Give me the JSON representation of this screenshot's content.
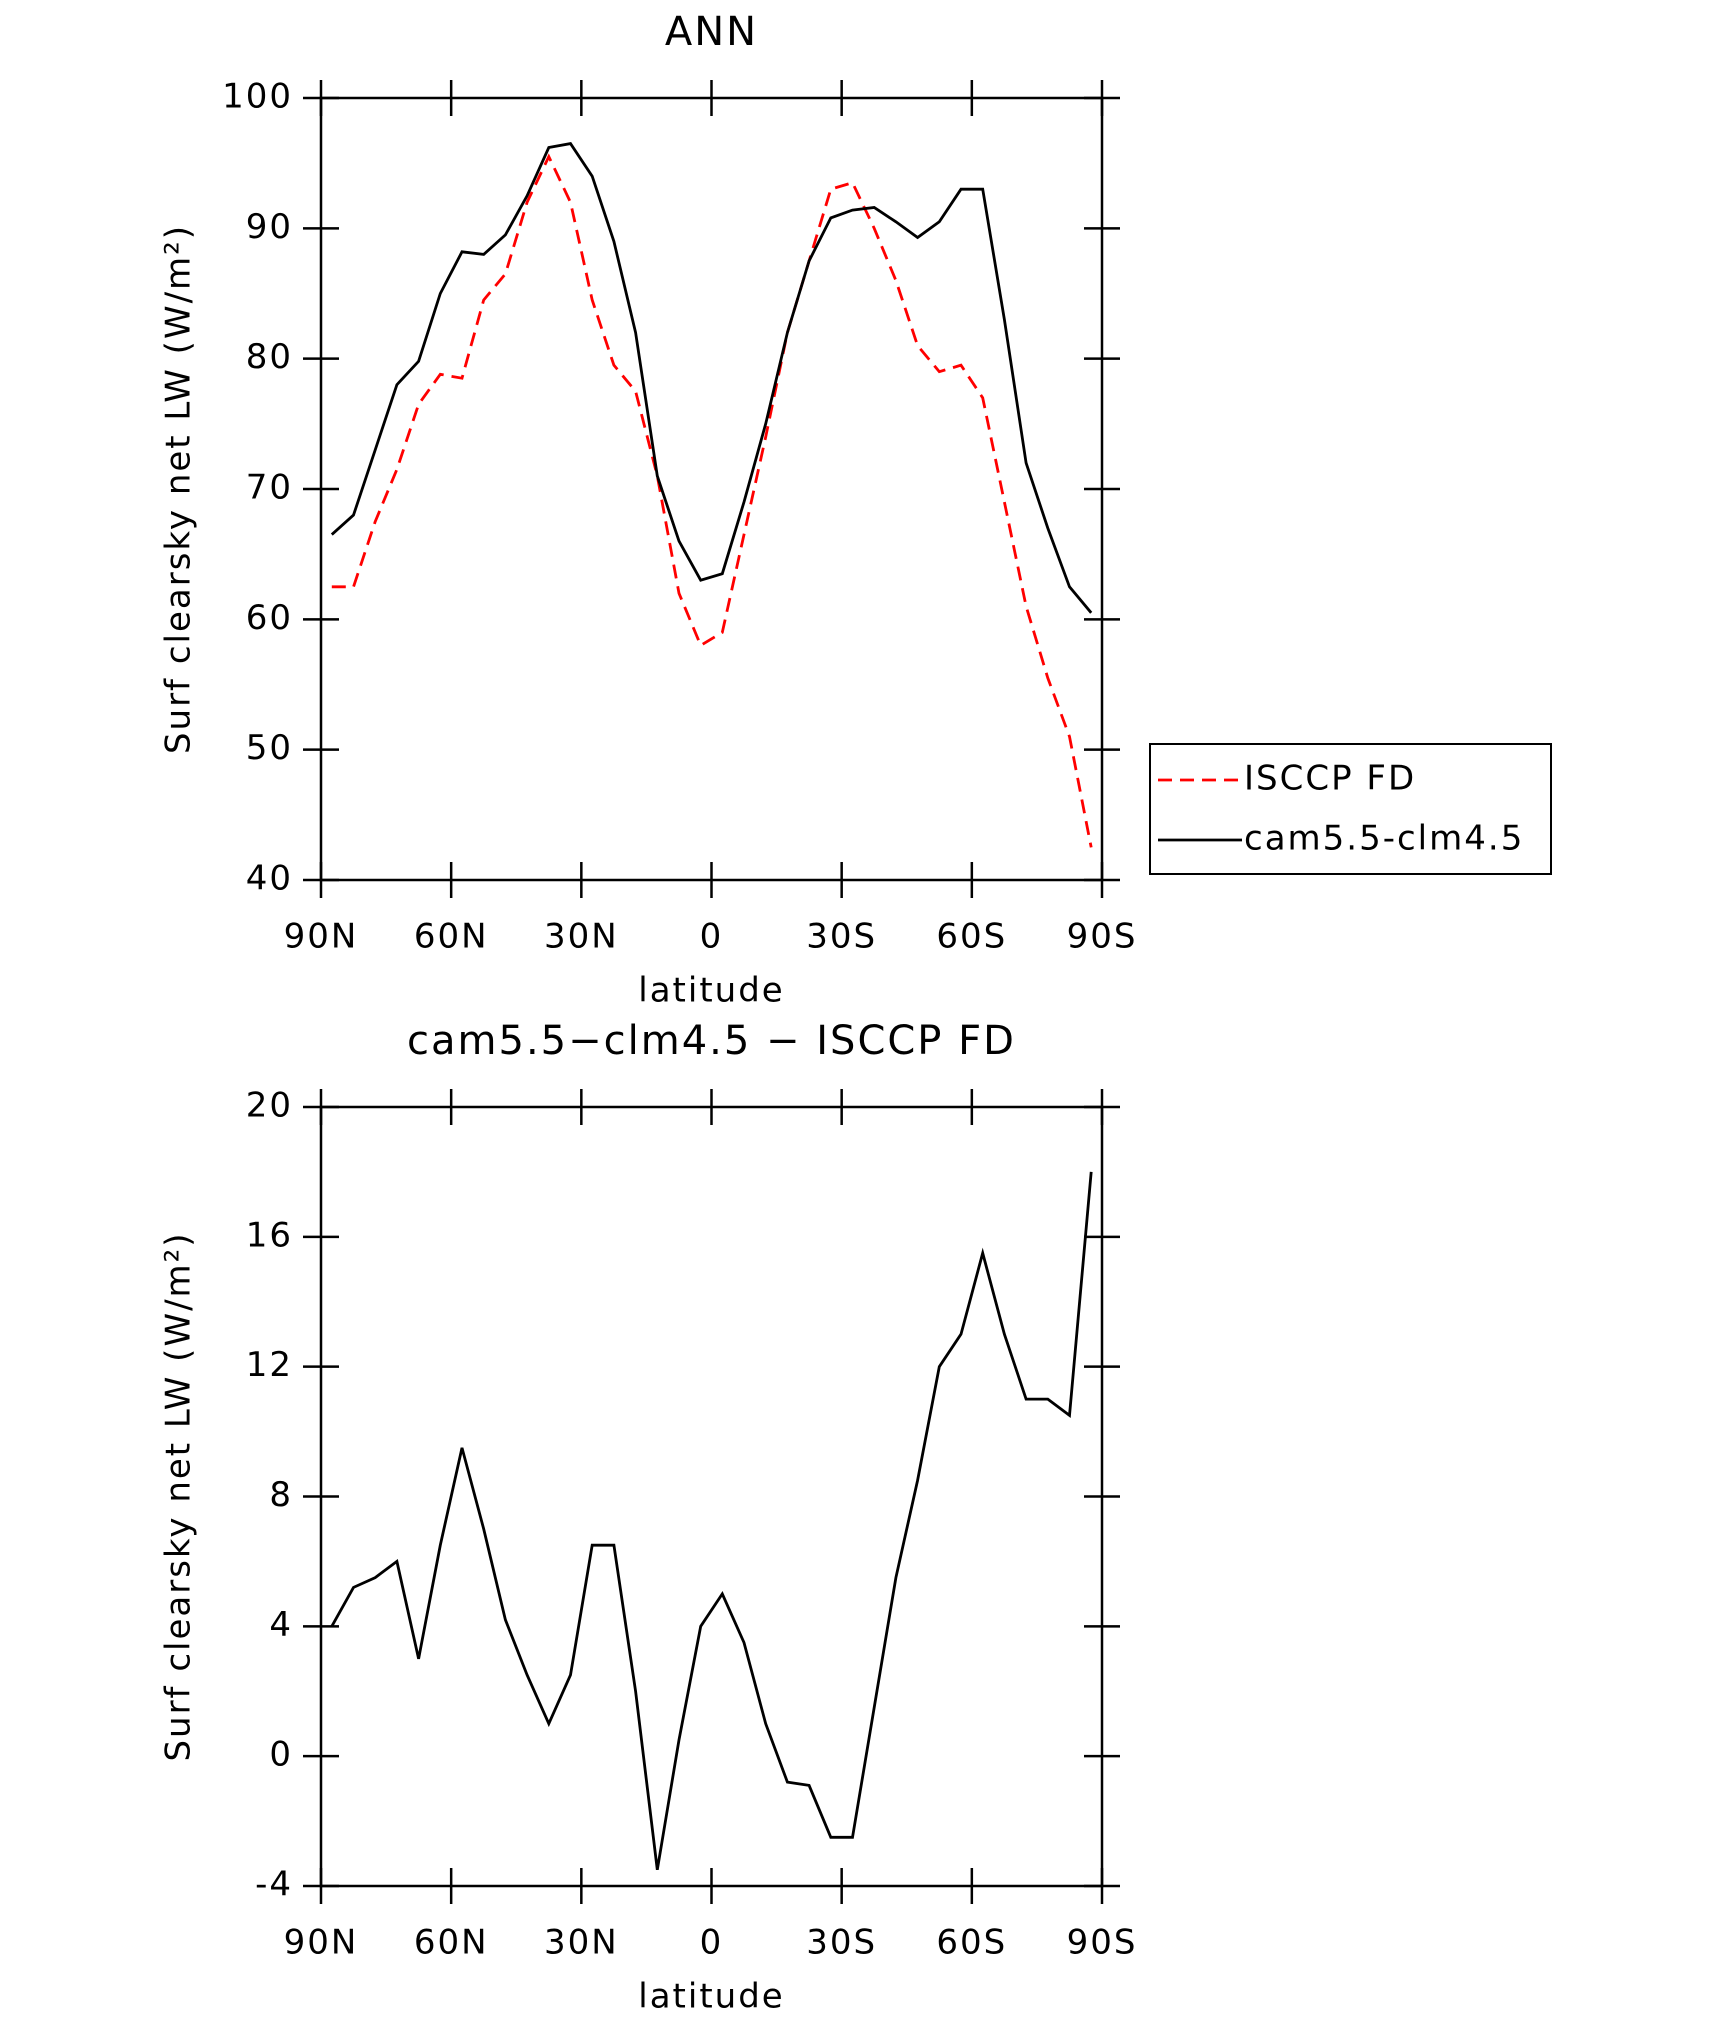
{
  "chart_data": [
    {
      "type": "line",
      "title": "ANN",
      "xlabel": "latitude",
      "ylabel": "Surf clearsky net LW (W/m²)",
      "x": [
        87.5,
        82.5,
        77.5,
        72.5,
        67.5,
        62.5,
        57.5,
        52.5,
        47.5,
        42.5,
        37.5,
        32.5,
        27.5,
        22.5,
        17.5,
        12.5,
        7.5,
        2.5,
        -2.5,
        -7.5,
        -12.5,
        -17.5,
        -22.5,
        -27.5,
        -32.5,
        -37.5,
        -42.5,
        -47.5,
        -52.5,
        -57.5,
        -62.5,
        -67.5,
        -72.5,
        -77.5,
        -82.5,
        -87.5
      ],
      "series": [
        {
          "name": "ISCCP FD",
          "color": "#ff0000",
          "linestyle": "dashed",
          "values": [
            62.5,
            62.5,
            67.5,
            71.5,
            76.5,
            78.8,
            78.5,
            84.5,
            86.5,
            92,
            95.5,
            92,
            84.5,
            79.5,
            77.5,
            71,
            62,
            58,
            59,
            66.5,
            74,
            82,
            87.5,
            93,
            93.5,
            90,
            86,
            81,
            79,
            79.5,
            77,
            69,
            61,
            55.5,
            51,
            42.5
          ]
        },
        {
          "name": "cam5.5-clm4.5",
          "color": "#000000",
          "linestyle": "solid",
          "values": [
            66.5,
            68,
            73,
            78,
            79.8,
            85,
            88.2,
            88,
            89.5,
            92.5,
            96.2,
            96.5,
            94,
            89,
            82,
            71,
            66,
            63,
            63.5,
            69,
            75,
            82,
            87.5,
            90.8,
            91.4,
            91.6,
            90.5,
            89.3,
            90.5,
            93,
            93,
            83,
            72,
            67,
            62.5,
            60.5
          ]
        }
      ],
      "xlim": [
        90,
        -90
      ],
      "xticks": [
        {
          "value": 90,
          "label": "90N"
        },
        {
          "value": 60,
          "label": "60N"
        },
        {
          "value": 30,
          "label": "30N"
        },
        0,
        {
          "value": -30,
          "label": "30S"
        },
        {
          "value": -60,
          "label": "60S"
        },
        {
          "value": -90,
          "label": "90S"
        }
      ],
      "ylim": [
        40,
        100
      ],
      "yticks": [
        40,
        50,
        60,
        70,
        80,
        90,
        100
      ],
      "legend": "right"
    },
    {
      "type": "line",
      "title": "cam5.5−clm4.5 − ISCCP FD",
      "xlabel": "latitude",
      "ylabel": "Surf clearsky net LW (W/m²)",
      "x": [
        87.5,
        82.5,
        77.5,
        72.5,
        67.5,
        62.5,
        57.5,
        52.5,
        47.5,
        42.5,
        37.5,
        32.5,
        27.5,
        22.5,
        17.5,
        12.5,
        7.5,
        2.5,
        -2.5,
        -7.5,
        -12.5,
        -17.5,
        -22.5,
        -27.5,
        -32.5,
        -37.5,
        -42.5,
        -47.5,
        -52.5,
        -57.5,
        -62.5,
        -67.5,
        -72.5,
        -77.5,
        -82.5,
        -87.5
      ],
      "series": [
        {
          "color": "#000000",
          "linestyle": "solid",
          "values": [
            4,
            5.2,
            5.5,
            6,
            3,
            6.5,
            9.5,
            7,
            4.2,
            2.5,
            1,
            2.5,
            6.5,
            6.5,
            2,
            -3.5,
            0.5,
            4,
            5,
            3.5,
            1,
            -0.8,
            -0.9,
            -2.5,
            -2.5,
            1.5,
            5.5,
            8.5,
            12,
            13,
            15.5,
            13,
            11,
            11,
            10.5,
            18
          ]
        }
      ],
      "xlim": [
        90,
        -90
      ],
      "xticks": [
        {
          "value": 90,
          "label": "90N"
        },
        {
          "value": 60,
          "label": "60N"
        },
        {
          "value": 30,
          "label": "30N"
        },
        0,
        {
          "value": -30,
          "label": "30S"
        },
        {
          "value": -60,
          "label": "60S"
        },
        {
          "value": -90,
          "label": "90S"
        }
      ],
      "ylim": [
        -4,
        20
      ],
      "yticks": [
        -4,
        0,
        4,
        8,
        12,
        16,
        20
      ]
    }
  ]
}
